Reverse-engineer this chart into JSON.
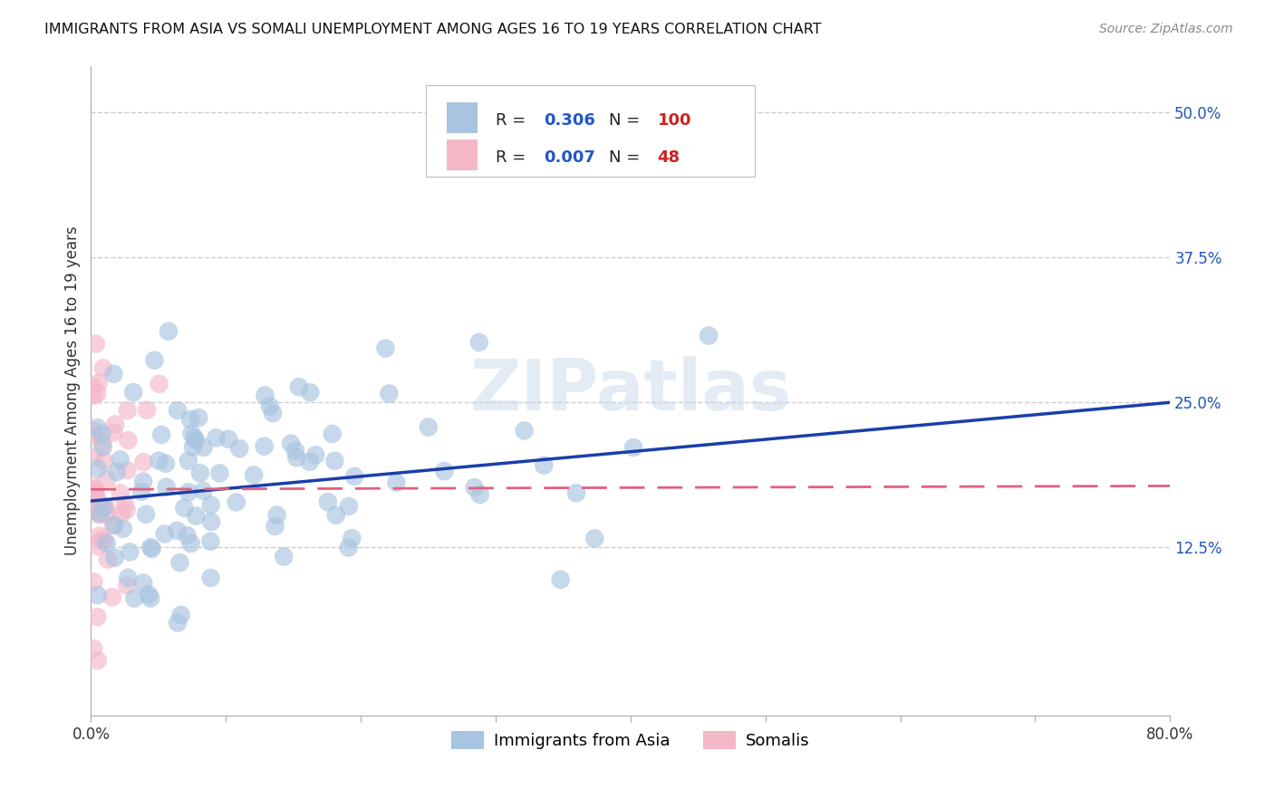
{
  "title": "IMMIGRANTS FROM ASIA VS SOMALI UNEMPLOYMENT AMONG AGES 16 TO 19 YEARS CORRELATION CHART",
  "source": "Source: ZipAtlas.com",
  "ylabel": "Unemployment Among Ages 16 to 19 years",
  "xlim": [
    0.0,
    0.8
  ],
  "ylim": [
    -0.02,
    0.54
  ],
  "ytick_right_labels": [
    "50.0%",
    "37.5%",
    "25.0%",
    "12.5%"
  ],
  "ytick_right_values": [
    0.5,
    0.375,
    0.25,
    0.125
  ],
  "grid_color": "#cccccc",
  "background_color": "#ffffff",
  "blue_color": "#a8c4e0",
  "pink_color": "#f4b8c8",
  "blue_line_color": "#1a3faa",
  "pink_line_color": "#e06080",
  "watermark": "ZIPatlas",
  "legend_label_blue": "Immigrants from Asia",
  "legend_label_pink": "Somalis",
  "R_blue_text": "0.306",
  "N_blue_text": "100",
  "R_pink_text": "0.007",
  "N_pink_text": "48"
}
